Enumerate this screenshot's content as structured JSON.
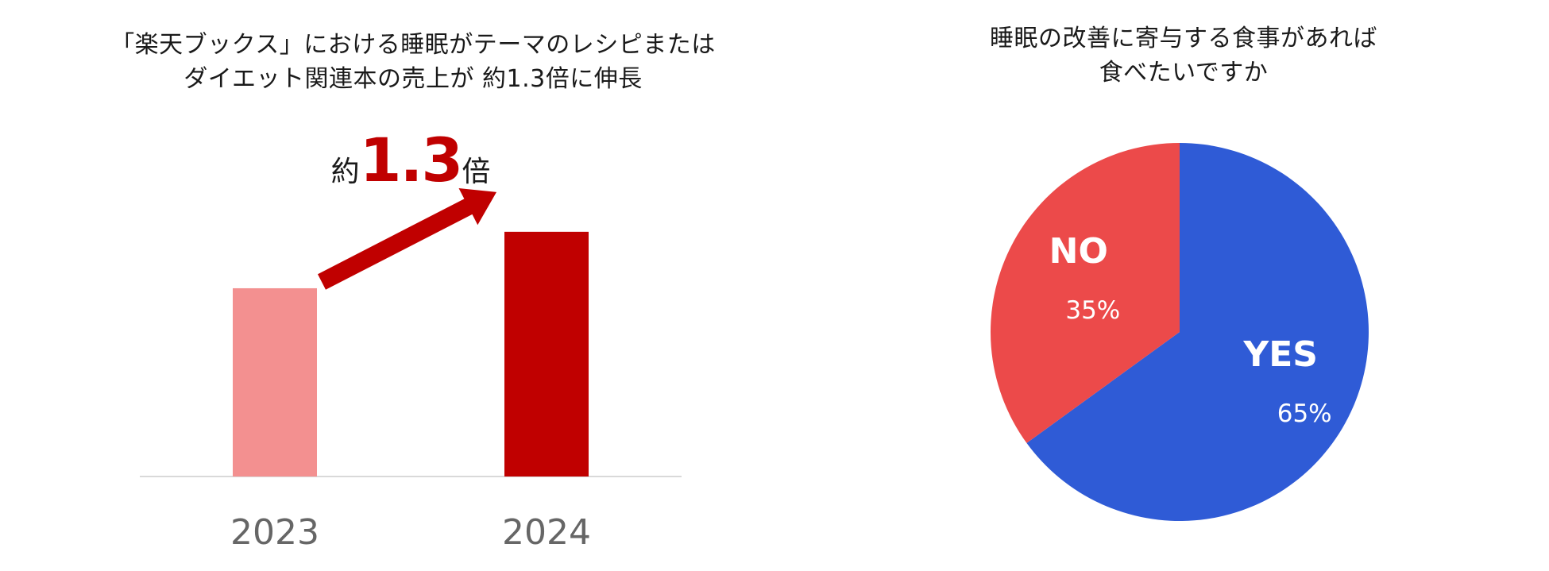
{
  "chart_data": [
    {
      "type": "bar",
      "title": [
        "「楽天ブックス」における睡眠がテーマのレシピまたは",
        "ダイエット関連本の売上が 約1.3倍に伸長"
      ],
      "categories": [
        "2023",
        "2024"
      ],
      "values": [
        1.0,
        1.3
      ],
      "colors": [
        "#f39090",
        "#c00000"
      ],
      "ylim": [
        0,
        1.35
      ],
      "grid": false,
      "annotation": {
        "prefix": "約",
        "value": "1.3",
        "suffix": "倍",
        "arrow_color": "#c00000"
      }
    },
    {
      "type": "pie",
      "title": [
        "睡眠の改善に寄与する食事があれば",
        "食べたいですか"
      ],
      "slices": [
        {
          "label": "YES",
          "value": 65,
          "display": "65%",
          "color": "#2f5bd6"
        },
        {
          "label": "NO",
          "value": 35,
          "display": "35%",
          "color": "#ec4a4a"
        }
      ],
      "start_angle": "top",
      "direction": "clockwise"
    }
  ]
}
